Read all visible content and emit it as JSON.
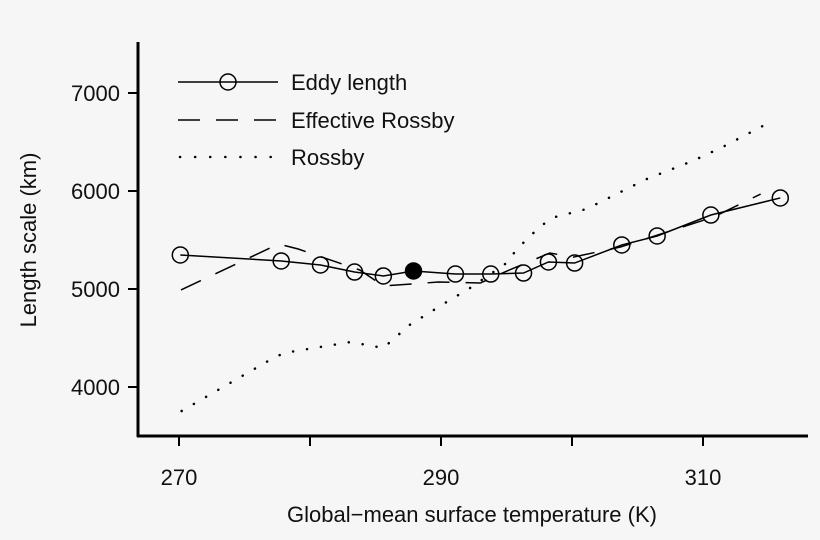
{
  "chart_data": {
    "type": "line",
    "title": "",
    "xlabel": "Global−mean surface temperature (K)",
    "ylabel": "Length scale (km)",
    "xlim": [
      267,
      318
    ],
    "ylim": [
      3520,
      7500
    ],
    "xticks": [
      270,
      280,
      290,
      300,
      310
    ],
    "xtick_labels": [
      "270",
      "",
      "290",
      "",
      "310"
    ],
    "yticks": [
      4000,
      5000,
      6000,
      7000
    ],
    "ytick_labels": [
      "4000",
      "5000",
      "6000",
      "7000"
    ],
    "grid": false,
    "legend_position": "top-left",
    "series": [
      {
        "name": "Eddy length",
        "style": "solid-with-open-circles",
        "highlighted_point_index": 5,
        "x": [
          270.1,
          277.8,
          280.8,
          283.4,
          285.6,
          287.9,
          291.1,
          293.8,
          296.3,
          298.2,
          300.2,
          303.8,
          306.5,
          310.6,
          315.9
        ],
        "y": [
          5347,
          5286,
          5245,
          5173,
          5133,
          5184,
          5153,
          5153,
          5163,
          5276,
          5265,
          5449,
          5541,
          5755,
          5929
        ]
      },
      {
        "name": "Effective Rossby",
        "style": "dashed",
        "x": [
          270.15,
          277.6,
          279.1,
          283.8,
          285.6,
          289.8,
          293.0,
          294.5,
          298.3,
          300.1,
          303.7,
          310.8,
          314.4
        ],
        "y": [
          4990,
          5459,
          5408,
          5194,
          5031,
          5071,
          5061,
          5153,
          5367,
          5326,
          5428,
          5734,
          5969
        ]
      },
      {
        "name": "Rossby",
        "style": "dotted",
        "x": [
          270.2,
          276.8,
          278.0,
          283.1,
          285.6,
          287.6,
          290.8,
          292.0,
          295.0,
          295.8,
          297.6,
          298.7,
          301.1,
          305.7,
          309.2,
          311.5,
          315.0
        ],
        "y": [
          3755,
          4265,
          4347,
          4459,
          4398,
          4633,
          4898,
          4990,
          5265,
          5408,
          5643,
          5734,
          5816,
          6122,
          6306,
          6449,
          6694
        ]
      }
    ]
  }
}
